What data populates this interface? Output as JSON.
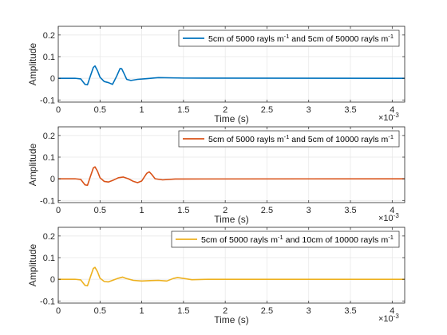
{
  "chart_data": [
    {
      "type": "line",
      "xlabel": "Time (s)",
      "ylabel": "Amplitude",
      "x_exponent_label": "×10",
      "x_exponent_power": "-3",
      "xlim": [
        0,
        0.00415
      ],
      "ylim": [
        -0.11,
        0.24
      ],
      "xticks": [
        0,
        0.5,
        1,
        1.5,
        2,
        2.5,
        3,
        3.5,
        4
      ],
      "xtick_labels": [
        "0",
        "0.5",
        "1",
        "1.5",
        "2",
        "2.5",
        "3",
        "3.5",
        "4"
      ],
      "yticks": [
        -0.1,
        0,
        0.1,
        0.2
      ],
      "ytick_labels": [
        "-0.1",
        "0",
        "0.1",
        "0.2"
      ],
      "grid": true,
      "legend_position": "top-right",
      "legend": {
        "part1": "5cm of 5000 rayls m",
        "sup1": "-1",
        "part2": " and 5cm of 50000 rayls m",
        "sup2": "-1"
      },
      "series": [
        {
          "color": "#0072BD",
          "x_ms": [
            0,
            0.2,
            0.27,
            0.32,
            0.35,
            0.38,
            0.42,
            0.44,
            0.47,
            0.5,
            0.55,
            0.6,
            0.65,
            0.7,
            0.74,
            0.76,
            0.79,
            0.82,
            0.87,
            0.95,
            1.05,
            1.2,
            1.5,
            4.15
          ],
          "y": [
            0,
            0,
            -0.003,
            -0.028,
            -0.03,
            0.005,
            0.05,
            0.057,
            0.035,
            0.005,
            -0.015,
            -0.02,
            -0.028,
            0.01,
            0.045,
            0.044,
            0.02,
            -0.005,
            -0.01,
            -0.005,
            -0.002,
            0.003,
            0.001,
            0
          ]
        }
      ]
    },
    {
      "type": "line",
      "xlabel": "Time (s)",
      "ylabel": "Amplitude",
      "x_exponent_label": "×10",
      "x_exponent_power": "-3",
      "xlim": [
        0,
        0.00415
      ],
      "ylim": [
        -0.11,
        0.24
      ],
      "xticks": [
        0,
        0.5,
        1,
        1.5,
        2,
        2.5,
        3,
        3.5,
        4
      ],
      "xtick_labels": [
        "0",
        "0.5",
        "1",
        "1.5",
        "2",
        "2.5",
        "3",
        "3.5",
        "4"
      ],
      "yticks": [
        -0.1,
        0,
        0.1,
        0.2
      ],
      "ytick_labels": [
        "-0.1",
        "0",
        "0.1",
        "0.2"
      ],
      "grid": true,
      "legend_position": "top-right",
      "legend": {
        "part1": "5cm of 5000 rayls m",
        "sup1": "-1",
        "part2": " and 5cm of 10000 rayls m",
        "sup2": "-1"
      },
      "series": [
        {
          "color": "#D95319",
          "x_ms": [
            0,
            0.2,
            0.27,
            0.32,
            0.35,
            0.38,
            0.42,
            0.44,
            0.47,
            0.5,
            0.55,
            0.6,
            0.65,
            0.72,
            0.78,
            0.84,
            0.9,
            0.95,
            1.0,
            1.06,
            1.09,
            1.12,
            1.16,
            1.25,
            1.4,
            4.15
          ],
          "y": [
            0,
            0,
            -0.003,
            -0.028,
            -0.03,
            0.005,
            0.05,
            0.055,
            0.035,
            0.005,
            -0.012,
            -0.015,
            -0.008,
            0.005,
            0.008,
            0.0,
            -0.012,
            -0.018,
            -0.01,
            0.025,
            0.032,
            0.02,
            0.0,
            -0.005,
            -0.001,
            0
          ]
        }
      ]
    },
    {
      "type": "line",
      "xlabel": "Time (s)",
      "ylabel": "Amplitude",
      "x_exponent_label": "×10",
      "x_exponent_power": "-3",
      "xlim": [
        0,
        0.00415
      ],
      "ylim": [
        -0.11,
        0.24
      ],
      "xticks": [
        0,
        0.5,
        1,
        1.5,
        2,
        2.5,
        3,
        3.5,
        4
      ],
      "xtick_labels": [
        "0",
        "0.5",
        "1",
        "1.5",
        "2",
        "2.5",
        "3",
        "3.5",
        "4"
      ],
      "yticks": [
        -0.1,
        0,
        0.1,
        0.2
      ],
      "ytick_labels": [
        "-0.1",
        "0",
        "0.1",
        "0.2"
      ],
      "grid": true,
      "legend_position": "top-right",
      "legend": {
        "part1": "5cm of 5000 rayls m",
        "sup1": "-1",
        "part2": " and 10cm of 10000 rayls m",
        "sup2": "-1"
      },
      "series": [
        {
          "color": "#EDB120",
          "x_ms": [
            0,
            0.2,
            0.27,
            0.32,
            0.35,
            0.38,
            0.42,
            0.44,
            0.47,
            0.5,
            0.55,
            0.6,
            0.65,
            0.72,
            0.77,
            0.82,
            0.9,
            1.0,
            1.1,
            1.2,
            1.3,
            1.38,
            1.43,
            1.5,
            1.6,
            1.8,
            4.15
          ],
          "y": [
            0,
            0,
            -0.003,
            -0.028,
            -0.03,
            0.005,
            0.05,
            0.055,
            0.035,
            0.005,
            -0.01,
            -0.012,
            -0.005,
            0.005,
            0.01,
            0.003,
            -0.005,
            -0.008,
            -0.006,
            -0.005,
            -0.008,
            0.004,
            0.008,
            0.004,
            -0.002,
            0.0,
            0
          ]
        }
      ]
    }
  ]
}
